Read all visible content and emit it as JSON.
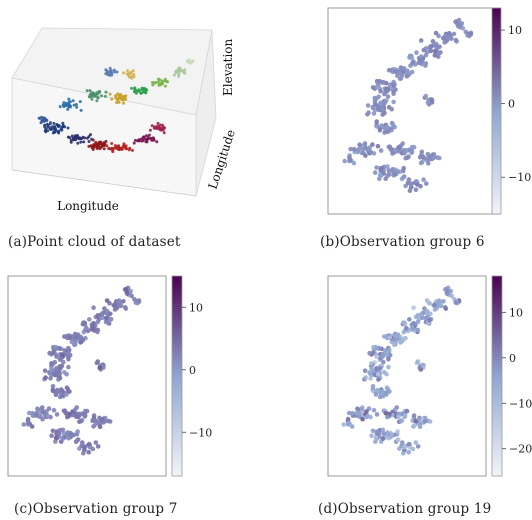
{
  "figure": {
    "panels": [
      {
        "id": "a",
        "caption": "(a)Point cloud of dataset",
        "chart_type": "scatter3d",
        "axis_labels": {
          "x": "Longitude",
          "depth": "Longitude",
          "z": "Elevation"
        }
      },
      {
        "id": "b",
        "caption": "(b)Observation group 6",
        "chart_type": "scatter",
        "colorbar_ticks": [
          "10",
          "0",
          "−10"
        ],
        "colorbar_range": [
          -15,
          13
        ]
      },
      {
        "id": "c",
        "caption": "(c)Observation group 7",
        "chart_type": "scatter",
        "colorbar_ticks": [
          "10",
          "0",
          "−10"
        ],
        "colorbar_range": [
          -17,
          15
        ]
      },
      {
        "id": "d",
        "caption": "(d)Observation group 19",
        "chart_type": "scatter",
        "colorbar_ticks": [
          "10",
          "0",
          "−10",
          "−20"
        ],
        "colorbar_range": [
          -26,
          18
        ]
      }
    ]
  },
  "colors": {
    "colormap_low": "#f2f4f9",
    "colormap_mid": "#8fa6d1",
    "colormap_high": "#4b0150"
  }
}
